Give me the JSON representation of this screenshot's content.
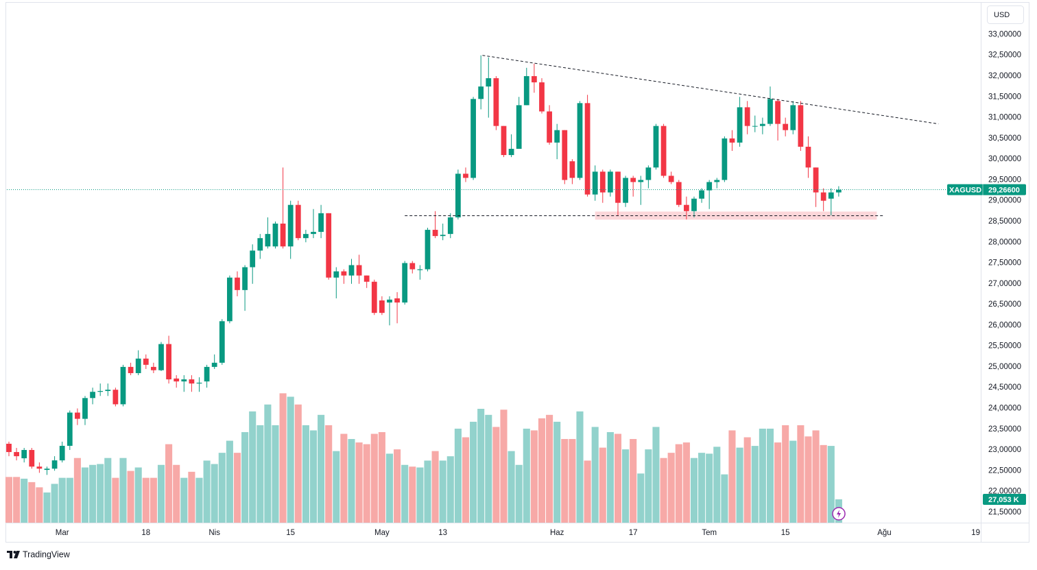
{
  "chart_data": {
    "type": "candlestick",
    "currency": "USD",
    "brand": "TradingView",
    "grid": false,
    "up_color": "#089981",
    "down_color": "#f23645",
    "volume_up_color": "#92d2cc",
    "volume_down_color": "#f7a9a7",
    "ylim": [
      21.25,
      33.75
    ],
    "yticks": [
      {
        "value": 33,
        "label": "33,00000"
      },
      {
        "value": 32.5,
        "label": "32,50000"
      },
      {
        "value": 32,
        "label": "32,00000"
      },
      {
        "value": 31.5,
        "label": "31,50000"
      },
      {
        "value": 31,
        "label": "31,00000"
      },
      {
        "value": 30.5,
        "label": "30,50000"
      },
      {
        "value": 30,
        "label": "30,00000"
      },
      {
        "value": 29.5,
        "label": "29,50000"
      },
      {
        "value": 29,
        "label": "29,00000"
      },
      {
        "value": 28.5,
        "label": "28,50000"
      },
      {
        "value": 28,
        "label": "28,00000"
      },
      {
        "value": 27.5,
        "label": "27,50000"
      },
      {
        "value": 27,
        "label": "27,00000"
      },
      {
        "value": 26.5,
        "label": "26,50000"
      },
      {
        "value": 26,
        "label": "26,00000"
      },
      {
        "value": 25.5,
        "label": "25,50000"
      },
      {
        "value": 25,
        "label": "25,00000"
      },
      {
        "value": 24.5,
        "label": "24,50000"
      },
      {
        "value": 24,
        "label": "24,00000"
      },
      {
        "value": 23.5,
        "label": "23,50000"
      },
      {
        "value": 23,
        "label": "23,00000"
      },
      {
        "value": 22.5,
        "label": "22,50000"
      },
      {
        "value": 22,
        "label": "22,00000"
      },
      {
        "value": 21.5,
        "label": "21,50000"
      }
    ],
    "xlim": [
      -0.27,
      127.66
    ],
    "xticks": [
      {
        "value": 7,
        "label": "Mar"
      },
      {
        "value": 18,
        "label": "18"
      },
      {
        "value": 27,
        "label": "Nis"
      },
      {
        "value": 37,
        "label": "15"
      },
      {
        "value": 49,
        "label": "May"
      },
      {
        "value": 57,
        "label": "13"
      },
      {
        "value": 72,
        "label": "Haz"
      },
      {
        "value": 82,
        "label": "17"
      },
      {
        "value": 92,
        "label": "Tem"
      },
      {
        "value": 102,
        "label": "15"
      },
      {
        "value": 115,
        "label": "Ağu"
      },
      {
        "value": 127,
        "label": "19"
      }
    ],
    "volume_ylim": [
      0,
      602
    ],
    "open": [
      23.15,
      22.95,
      22.8,
      23.0,
      22.6,
      22.52,
      22.55,
      22.75,
      23.1,
      23.9,
      23.75,
      24.25,
      24.4,
      24.42,
      24.45,
      24.1,
      25.0,
      24.85,
      25.2,
      25.0,
      24.92,
      25.55,
      24.72,
      24.65,
      24.7,
      24.6,
      24.65,
      25.0,
      25.1,
      26.1,
      27.15,
      26.85,
      27.4,
      27.8,
      27.9,
      27.9,
      28.45,
      27.9,
      28.9,
      28.1,
      28.2,
      28.25,
      28.7,
      27.15,
      27.3,
      27.2,
      27.45,
      27.2,
      27.05,
      26.6,
      26.55,
      26.65,
      26.55,
      27.5,
      27.33,
      27.35,
      28.3,
      28.15,
      28.2,
      28.6,
      29.65,
      29.55,
      31.45,
      31.75,
      31.95,
      30.8,
      30.1,
      30.25,
      31.3,
      32.0,
      31.85,
      31.15,
      30.4,
      30.7,
      29.95,
      29.55,
      31.35,
      29.15,
      29.7,
      29.2,
      29.7,
      28.95,
      29.55,
      29.45,
      29.5,
      29.8,
      30.8,
      29.6,
      29.45,
      28.9,
      28.75,
      29.05,
      29.25,
      29.45,
      29.5,
      30.5,
      30.4,
      31.25,
      30.8,
      30.8,
      30.85,
      31.4,
      30.85,
      30.7,
      31.3,
      30.3,
      29.8,
      29.2,
      29.05,
      29.2
    ],
    "high": [
      23.2,
      23.05,
      23.05,
      23.05,
      22.7,
      22.6,
      22.85,
      23.2,
      23.95,
      24.0,
      24.3,
      24.5,
      24.6,
      24.6,
      24.5,
      25.05,
      25.1,
      25.4,
      25.3,
      25.1,
      25.6,
      25.75,
      24.8,
      24.8,
      24.8,
      24.75,
      25.05,
      25.3,
      26.15,
      27.2,
      27.3,
      27.45,
      27.95,
      28.2,
      28.6,
      28.5,
      29.8,
      29.0,
      29.0,
      28.3,
      28.8,
      28.9,
      28.7,
      27.4,
      27.35,
      27.6,
      27.7,
      27.2,
      27.1,
      26.7,
      26.7,
      26.8,
      27.55,
      27.55,
      27.45,
      28.35,
      28.75,
      28.45,
      28.7,
      29.75,
      29.8,
      31.5,
      32.5,
      32.45,
      32.0,
      30.8,
      30.6,
      31.5,
      32.2,
      32.3,
      31.95,
      31.3,
      30.85,
      30.7,
      30.0,
      31.4,
      31.55,
      29.85,
      29.75,
      29.75,
      29.7,
      29.6,
      29.6,
      29.6,
      29.85,
      30.85,
      30.85,
      29.7,
      29.5,
      29.1,
      29.1,
      29.3,
      29.5,
      29.55,
      30.55,
      30.7,
      31.5,
      31.4,
      31.05,
      31.0,
      31.75,
      31.45,
      31.0,
      31.4,
      31.4,
      30.55,
      29.8,
      29.3,
      29.3,
      29.35
    ],
    "low": [
      22.85,
      22.75,
      22.7,
      22.55,
      22.45,
      22.4,
      22.5,
      22.7,
      23.0,
      23.6,
      23.6,
      24.1,
      24.3,
      24.3,
      24.05,
      24.05,
      24.8,
      24.8,
      24.95,
      24.85,
      24.9,
      24.6,
      24.5,
      24.4,
      24.4,
      24.4,
      24.5,
      24.95,
      25.05,
      26.05,
      26.7,
      26.35,
      27.0,
      27.6,
      27.85,
      27.85,
      27.85,
      27.6,
      28.05,
      28.0,
      28.1,
      28.1,
      27.1,
      26.65,
      27.0,
      27.0,
      27.0,
      26.9,
      26.25,
      26.25,
      26.0,
      26.05,
      26.5,
      27.25,
      27.1,
      27.3,
      28.1,
      28.05,
      28.1,
      28.55,
      29.45,
      29.5,
      31.2,
      31.0,
      30.7,
      30.05,
      30.05,
      30.25,
      31.3,
      31.6,
      31.1,
      30.35,
      30.0,
      29.4,
      29.4,
      29.5,
      29.1,
      29.0,
      28.95,
      29.1,
      28.65,
      28.85,
      29.1,
      28.9,
      29.3,
      29.75,
      29.55,
      29.4,
      28.85,
      28.55,
      28.6,
      28.95,
      28.8,
      29.3,
      29.45,
      30.2,
      30.3,
      30.6,
      30.65,
      30.6,
      30.8,
      30.45,
      30.55,
      30.6,
      30.2,
      29.55,
      28.85,
      28.75,
      28.65,
      29.1
    ],
    "close": [
      22.95,
      22.85,
      23.0,
      22.6,
      22.55,
      22.55,
      22.75,
      23.1,
      23.9,
      23.75,
      24.25,
      24.4,
      24.42,
      24.45,
      24.1,
      25.0,
      24.85,
      25.2,
      25.05,
      24.92,
      25.55,
      24.7,
      24.65,
      24.7,
      24.6,
      24.62,
      25.0,
      25.1,
      26.1,
      27.15,
      26.85,
      27.4,
      27.8,
      28.1,
      28.2,
      28.45,
      27.9,
      28.9,
      28.1,
      28.2,
      28.25,
      28.7,
      27.15,
      27.3,
      27.2,
      27.45,
      27.2,
      27.05,
      26.3,
      26.3,
      26.62,
      26.55,
      27.5,
      27.35,
      27.35,
      28.3,
      28.15,
      28.18,
      28.6,
      29.65,
      29.55,
      31.45,
      31.75,
      31.95,
      30.8,
      30.1,
      30.25,
      31.3,
      32.0,
      31.85,
      31.15,
      30.4,
      30.7,
      29.5,
      29.55,
      31.35,
      29.15,
      29.7,
      29.2,
      29.7,
      28.95,
      29.55,
      29.45,
      29.5,
      29.8,
      30.8,
      29.6,
      29.45,
      28.9,
      28.75,
      29.05,
      29.25,
      29.45,
      29.5,
      30.5,
      30.4,
      31.25,
      30.8,
      30.8,
      30.85,
      31.45,
      30.85,
      30.7,
      31.3,
      30.3,
      29.8,
      29.2,
      29.0,
      29.2,
      29.266
    ],
    "volume": [
      53,
      53,
      51,
      47,
      41,
      35,
      45,
      52,
      52,
      75,
      64,
      67,
      68,
      75,
      52,
      75,
      60,
      64,
      52,
      52,
      67,
      91,
      67,
      52,
      59,
      52,
      72,
      68,
      81,
      95,
      81,
      105,
      129,
      113,
      137,
      113,
      150,
      146,
      137,
      113,
      107,
      125,
      113,
      83,
      103,
      97,
      93,
      91,
      103,
      105,
      80,
      85,
      67,
      65,
      64,
      72,
      83,
      72,
      77,
      109,
      99,
      117,
      132,
      125,
      111,
      131,
      83,
      67,
      109,
      107,
      121,
      125,
      117,
      97,
      97,
      129,
      72,
      111,
      87,
      105,
      103,
      85,
      97,
      57,
      85,
      111,
      75,
      81,
      91,
      93,
      75,
      81,
      80,
      88,
      56,
      107,
      87,
      99,
      89,
      109,
      109,
      93,
      113,
      95,
      113,
      100,
      107,
      90,
      89,
      27.053
    ],
    "price_line": {
      "symbol": "XAGUSD",
      "value": 29.266,
      "label": "29,26600"
    },
    "last_volume": {
      "value": 27.053,
      "label": "27,053 K"
    },
    "resistance_line": {
      "x": [
        62.2,
        122.1
      ],
      "y": [
        32.5,
        30.85
      ]
    },
    "support_line": {
      "x": [
        52,
        114.9
      ],
      "y": [
        28.64,
        28.64
      ]
    },
    "support_zone": {
      "x": [
        77,
        114
      ],
      "y": [
        28.545,
        28.74
      ]
    }
  }
}
